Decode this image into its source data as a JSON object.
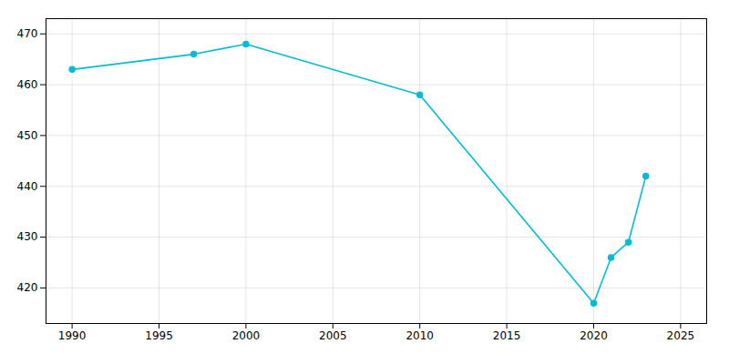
{
  "chart_data": {
    "type": "line",
    "x": [
      1990,
      1997,
      2000,
      2010,
      2020,
      2021,
      2022,
      2023
    ],
    "values": [
      463,
      466,
      468,
      458,
      417,
      426,
      429,
      442
    ],
    "color": "#00BCD4",
    "marker": "circle",
    "xlim": [
      1988.5,
      2026.5
    ],
    "ylim": [
      413,
      473
    ],
    "xticks": [
      1990,
      1995,
      2000,
      2005,
      2010,
      2015,
      2020,
      2025
    ],
    "yticks": [
      420,
      430,
      440,
      450,
      460,
      470
    ],
    "grid": true
  }
}
